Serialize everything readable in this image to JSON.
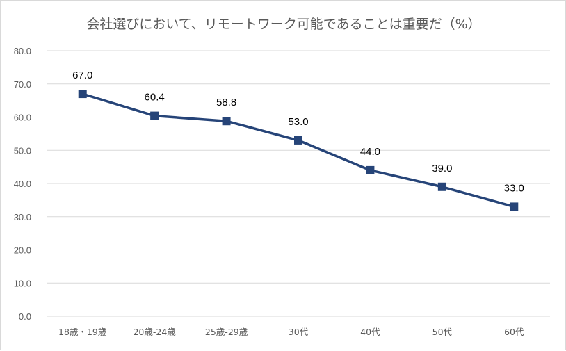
{
  "chart_data": {
    "type": "line",
    "title": "会社選びにおいて、リモートワーク可能であることは重要だ（%）",
    "categories": [
      "18歳・19歳",
      "20歳-24歳",
      "25歳-29歳",
      "30代",
      "40代",
      "50代",
      "60代"
    ],
    "values": [
      67.0,
      60.4,
      58.8,
      53.0,
      44.0,
      39.0,
      33.0
    ],
    "data_labels": [
      "67.0",
      "60.4",
      "58.8",
      "53.0",
      "44.0",
      "39.0",
      "33.0"
    ],
    "ylim": [
      0,
      80
    ],
    "y_ticks": [
      "0.0",
      "10.0",
      "20.0",
      "30.0",
      "40.0",
      "50.0",
      "60.0",
      "70.0",
      "80.0"
    ],
    "grid": true,
    "legend": "none",
    "colors": {
      "line": "#264478",
      "marker": "#264478",
      "grid": "#d9d9d9",
      "text": "#595959"
    }
  }
}
